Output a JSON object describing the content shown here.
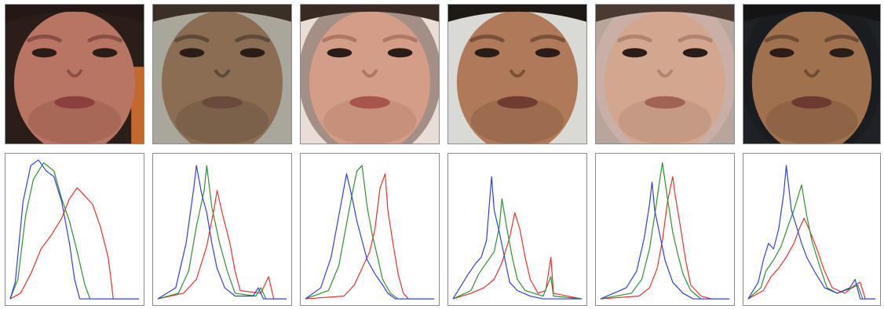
{
  "figure": {
    "panels": [
      {
        "face": {
          "skin": "#b87563",
          "skin_dark": "#8a4f44",
          "bg": "#2b1d18",
          "hair": "#241814",
          "cover": "none",
          "lips": "#8c3f3f",
          "side": "#c4682c"
        },
        "histogram": {
          "blue": [
            [
              0,
              0
            ],
            [
              4,
              12
            ],
            [
              10,
              70
            ],
            [
              16,
              96
            ],
            [
              22,
              100
            ],
            [
              28,
              92
            ],
            [
              34,
              88
            ],
            [
              40,
              70
            ],
            [
              46,
              40
            ],
            [
              50,
              14
            ],
            [
              54,
              0
            ],
            [
              100,
              0
            ]
          ],
          "green": [
            [
              0,
              0
            ],
            [
              6,
              14
            ],
            [
              12,
              60
            ],
            [
              18,
              86
            ],
            [
              26,
              98
            ],
            [
              34,
              92
            ],
            [
              40,
              72
            ],
            [
              46,
              56
            ],
            [
              52,
              34
            ],
            [
              58,
              10
            ],
            [
              62,
              0
            ],
            [
              100,
              0
            ]
          ],
          "red": [
            [
              0,
              0
            ],
            [
              8,
              4
            ],
            [
              16,
              18
            ],
            [
              24,
              36
            ],
            [
              32,
              46
            ],
            [
              40,
              58
            ],
            [
              46,
              72
            ],
            [
              52,
              80
            ],
            [
              58,
              74
            ],
            [
              64,
              68
            ],
            [
              70,
              52
            ],
            [
              76,
              30
            ],
            [
              78,
              16
            ],
            [
              80,
              0
            ],
            [
              100,
              0
            ]
          ]
        }
      },
      {
        "face": {
          "skin": "#8a6d52",
          "skin_dark": "#5e4a38",
          "bg": "#a9a79c",
          "hair": "#3a3026",
          "cover": "none",
          "lips": "#6a4a3c",
          "side": "none"
        },
        "histogram": {
          "blue": [
            [
              0,
              0
            ],
            [
              14,
              8
            ],
            [
              22,
              40
            ],
            [
              28,
              80
            ],
            [
              30,
              96
            ],
            [
              34,
              76
            ],
            [
              38,
              62
            ],
            [
              42,
              40
            ],
            [
              46,
              22
            ],
            [
              52,
              8
            ],
            [
              60,
              2
            ],
            [
              74,
              2
            ],
            [
              78,
              8
            ],
            [
              82,
              0
            ],
            [
              100,
              0
            ]
          ],
          "green": [
            [
              0,
              0
            ],
            [
              16,
              4
            ],
            [
              24,
              20
            ],
            [
              30,
              52
            ],
            [
              36,
              78
            ],
            [
              38,
              96
            ],
            [
              42,
              66
            ],
            [
              48,
              40
            ],
            [
              54,
              20
            ],
            [
              60,
              4
            ],
            [
              76,
              2
            ],
            [
              80,
              8
            ],
            [
              84,
              0
            ],
            [
              100,
              0
            ]
          ],
          "red": [
            [
              0,
              0
            ],
            [
              20,
              4
            ],
            [
              30,
              14
            ],
            [
              38,
              38
            ],
            [
              44,
              66
            ],
            [
              46,
              78
            ],
            [
              50,
              62
            ],
            [
              56,
              40
            ],
            [
              60,
              20
            ],
            [
              64,
              6
            ],
            [
              80,
              4
            ],
            [
              86,
              16
            ],
            [
              90,
              0
            ],
            [
              100,
              0
            ]
          ]
        }
      },
      {
        "face": {
          "skin": "#d49d88",
          "skin_dark": "#b07864",
          "bg": "#e9ded7",
          "hair": "#3a2a24",
          "cover": "#a48f86",
          "lips": "#a8554d",
          "side": "none"
        },
        "histogram": {
          "blue": [
            [
              0,
              0
            ],
            [
              12,
              8
            ],
            [
              20,
              30
            ],
            [
              28,
              70
            ],
            [
              32,
              90
            ],
            [
              36,
              74
            ],
            [
              40,
              56
            ],
            [
              44,
              42
            ],
            [
              48,
              28
            ],
            [
              54,
              18
            ],
            [
              60,
              10
            ],
            [
              64,
              4
            ],
            [
              70,
              0
            ],
            [
              100,
              0
            ]
          ],
          "green": [
            [
              0,
              0
            ],
            [
              18,
              6
            ],
            [
              26,
              24
            ],
            [
              32,
              54
            ],
            [
              36,
              74
            ],
            [
              40,
              92
            ],
            [
              44,
              96
            ],
            [
              48,
              66
            ],
            [
              52,
              46
            ],
            [
              56,
              30
            ],
            [
              60,
              14
            ],
            [
              66,
              4
            ],
            [
              72,
              0
            ],
            [
              100,
              0
            ]
          ],
          "red": [
            [
              0,
              0
            ],
            [
              30,
              2
            ],
            [
              38,
              10
            ],
            [
              44,
              22
            ],
            [
              50,
              34
            ],
            [
              54,
              50
            ],
            [
              58,
              80
            ],
            [
              62,
              90
            ],
            [
              64,
              64
            ],
            [
              68,
              40
            ],
            [
              72,
              18
            ],
            [
              76,
              4
            ],
            [
              80,
              0
            ],
            [
              100,
              0
            ]
          ]
        }
      },
      {
        "face": {
          "skin": "#b07a5a",
          "skin_dark": "#7b5038",
          "bg": "#d9dad6",
          "hair": "#1f1914",
          "cover": "none",
          "lips": "#6e3c32",
          "side": "none"
        },
        "histogram": {
          "blue": [
            [
              0,
              0
            ],
            [
              12,
              18
            ],
            [
              18,
              26
            ],
            [
              22,
              30
            ],
            [
              26,
              42
            ],
            [
              30,
              88
            ],
            [
              32,
              64
            ],
            [
              36,
              48
            ],
            [
              40,
              30
            ],
            [
              44,
              12
            ],
            [
              50,
              6
            ],
            [
              60,
              2
            ],
            [
              70,
              0
            ],
            [
              100,
              0
            ]
          ],
          "green": [
            [
              0,
              0
            ],
            [
              14,
              6
            ],
            [
              20,
              18
            ],
            [
              26,
              26
            ],
            [
              32,
              34
            ],
            [
              36,
              52
            ],
            [
              38,
              72
            ],
            [
              42,
              50
            ],
            [
              46,
              30
            ],
            [
              50,
              14
            ],
            [
              56,
              6
            ],
            [
              70,
              2
            ],
            [
              76,
              16
            ],
            [
              78,
              2
            ],
            [
              100,
              0
            ]
          ],
          "red": [
            [
              0,
              0
            ],
            [
              14,
              4
            ],
            [
              24,
              8
            ],
            [
              32,
              14
            ],
            [
              38,
              26
            ],
            [
              44,
              44
            ],
            [
              48,
              62
            ],
            [
              52,
              50
            ],
            [
              56,
              30
            ],
            [
              60,
              14
            ],
            [
              66,
              4
            ],
            [
              72,
              6
            ],
            [
              76,
              30
            ],
            [
              78,
              4
            ],
            [
              100,
              0
            ]
          ]
        }
      },
      {
        "face": {
          "skin": "#d2a68f",
          "skin_dark": "#b08471",
          "bg": "#b8a59c",
          "hair": "#4a3a32",
          "cover": "#c9b0a6",
          "lips": "#a26256",
          "side": "none"
        },
        "histogram": {
          "blue": [
            [
              0,
              0
            ],
            [
              20,
              8
            ],
            [
              28,
              20
            ],
            [
              34,
              44
            ],
            [
              38,
              68
            ],
            [
              40,
              84
            ],
            [
              42,
              64
            ],
            [
              46,
              46
            ],
            [
              50,
              28
            ],
            [
              56,
              12
            ],
            [
              64,
              4
            ],
            [
              72,
              0
            ],
            [
              100,
              0
            ]
          ],
          "green": [
            [
              0,
              0
            ],
            [
              24,
              4
            ],
            [
              32,
              14
            ],
            [
              38,
              36
            ],
            [
              42,
              60
            ],
            [
              46,
              86
            ],
            [
              48,
              98
            ],
            [
              52,
              72
            ],
            [
              56,
              48
            ],
            [
              60,
              32
            ],
            [
              64,
              18
            ],
            [
              70,
              6
            ],
            [
              78,
              0
            ],
            [
              100,
              0
            ]
          ],
          "red": [
            [
              0,
              0
            ],
            [
              30,
              2
            ],
            [
              38,
              8
            ],
            [
              44,
              22
            ],
            [
              48,
              42
            ],
            [
              52,
              70
            ],
            [
              56,
              88
            ],
            [
              58,
              74
            ],
            [
              62,
              52
            ],
            [
              66,
              28
            ],
            [
              70,
              10
            ],
            [
              78,
              2
            ],
            [
              86,
              0
            ],
            [
              100,
              0
            ]
          ]
        }
      },
      {
        "face": {
          "skin": "#a0714f",
          "skin_dark": "#6e4c34",
          "bg": "#1e2226",
          "hair": "#121416",
          "cover": "#1a1d20",
          "lips": "#6c3a30",
          "side": "none"
        },
        "histogram": {
          "blue": [
            [
              0,
              0
            ],
            [
              8,
              12
            ],
            [
              12,
              28
            ],
            [
              16,
              40
            ],
            [
              20,
              36
            ],
            [
              24,
              50
            ],
            [
              28,
              76
            ],
            [
              30,
              96
            ],
            [
              34,
              64
            ],
            [
              38,
              52
            ],
            [
              42,
              40
            ],
            [
              46,
              30
            ],
            [
              52,
              20
            ],
            [
              60,
              8
            ],
            [
              70,
              4
            ],
            [
              80,
              8
            ],
            [
              84,
              14
            ],
            [
              88,
              0
            ],
            [
              100,
              0
            ]
          ],
          "green": [
            [
              0,
              0
            ],
            [
              10,
              8
            ],
            [
              14,
              20
            ],
            [
              20,
              28
            ],
            [
              26,
              38
            ],
            [
              32,
              54
            ],
            [
              36,
              64
            ],
            [
              40,
              76
            ],
            [
              42,
              82
            ],
            [
              46,
              60
            ],
            [
              50,
              42
            ],
            [
              56,
              24
            ],
            [
              62,
              8
            ],
            [
              70,
              4
            ],
            [
              82,
              8
            ],
            [
              86,
              10
            ],
            [
              90,
              0
            ],
            [
              100,
              0
            ]
          ],
          "red": [
            [
              0,
              0
            ],
            [
              12,
              6
            ],
            [
              18,
              16
            ],
            [
              24,
              22
            ],
            [
              30,
              30
            ],
            [
              36,
              40
            ],
            [
              40,
              50
            ],
            [
              44,
              58
            ],
            [
              48,
              50
            ],
            [
              54,
              36
            ],
            [
              60,
              20
            ],
            [
              66,
              8
            ],
            [
              76,
              4
            ],
            [
              84,
              10
            ],
            [
              88,
              12
            ],
            [
              92,
              0
            ],
            [
              100,
              0
            ]
          ]
        }
      }
    ],
    "colors": {
      "blue": "#2b3fe0",
      "green": "#2f8f2f",
      "red": "#e8312a",
      "frame": "#8c8c8c"
    }
  }
}
